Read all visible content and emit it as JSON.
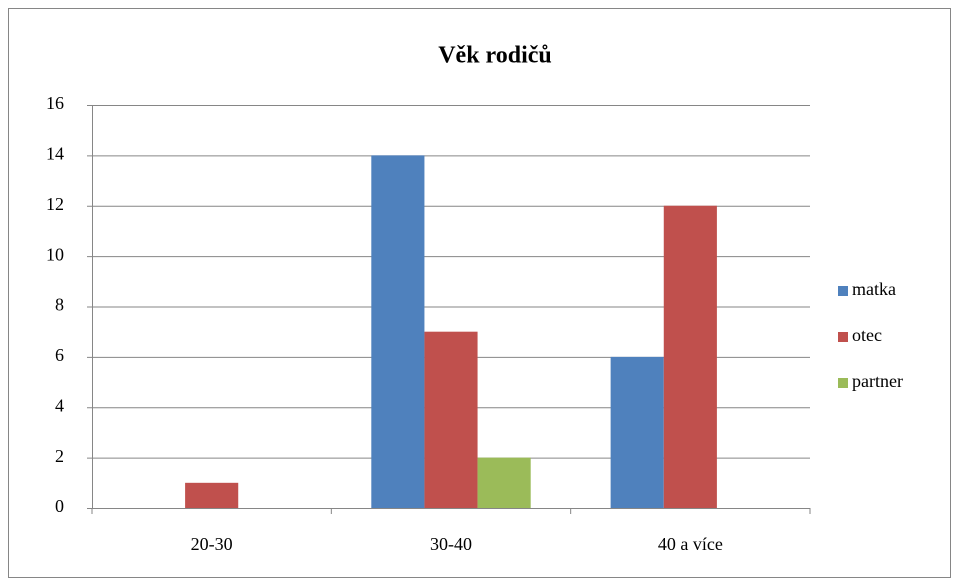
{
  "chart_data": {
    "type": "bar",
    "title": "Věk rodičů",
    "categories": [
      "20-30",
      "30-40",
      "40 a více"
    ],
    "series": [
      {
        "name": "matka",
        "color": "#4f81bd",
        "values": [
          0,
          14,
          6
        ]
      },
      {
        "name": "otec",
        "color": "#c0504d",
        "values": [
          1,
          7,
          12
        ]
      },
      {
        "name": "partner",
        "color": "#9bbb59",
        "values": [
          0,
          2,
          0
        ]
      }
    ],
    "ylim": [
      0,
      16
    ],
    "yticks": [
      0,
      2,
      4,
      6,
      8,
      10,
      12,
      14,
      16
    ],
    "grid": true,
    "legend": "right"
  }
}
